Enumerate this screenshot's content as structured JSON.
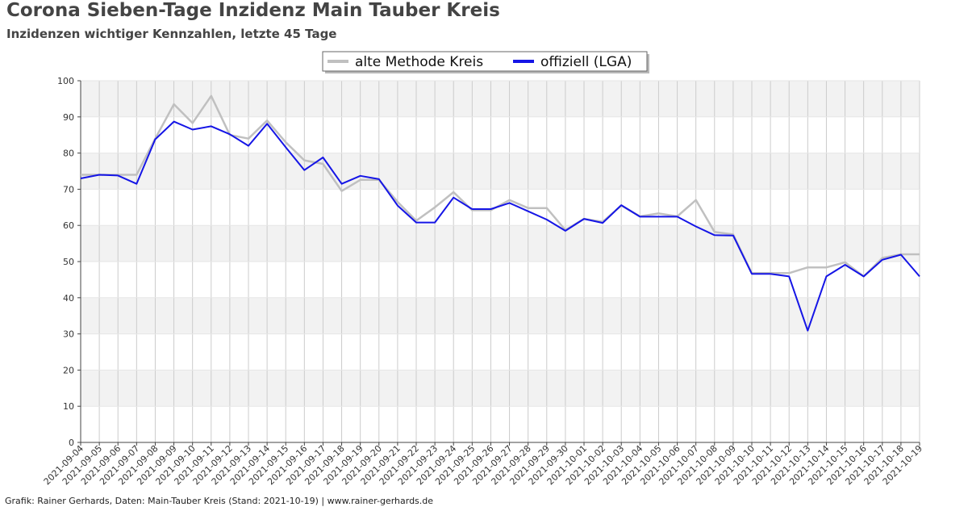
{
  "title": "Corona Sieben-Tage Inzidenz Main Tauber Kreis",
  "subtitle": "Inzidenzen wichtiger Kennzahlen, letzte 45 Tage",
  "footer": "Grafik: Rainer Gerhards, Daten: Main-Tauber Kreis (Stand: 2021-10-19) | www.rainer-gerhards.de",
  "chart_data": {
    "type": "line",
    "grid": true,
    "legend_position": "top-center",
    "ylim": [
      0,
      100
    ],
    "yticks": [
      0,
      10,
      20,
      30,
      40,
      50,
      60,
      70,
      80,
      90,
      100
    ],
    "categories": [
      "2021-09-04",
      "2021-09-05",
      "2021-09-06",
      "2021-09-07",
      "2021-09-08",
      "2021-09-09",
      "2021-09-10",
      "2021-09-11",
      "2021-09-12",
      "2021-09-13",
      "2021-09-14",
      "2021-09-15",
      "2021-09-16",
      "2021-09-17",
      "2021-09-18",
      "2021-09-19",
      "2021-09-20",
      "2021-09-21",
      "2021-09-22",
      "2021-09-23",
      "2021-09-24",
      "2021-09-25",
      "2021-09-26",
      "2021-09-27",
      "2021-09-28",
      "2021-09-29",
      "2021-09-30",
      "2021-10-01",
      "2021-10-02",
      "2021-10-03",
      "2021-10-04",
      "2021-10-05",
      "2021-10-06",
      "2021-10-07",
      "2021-10-08",
      "2021-10-09",
      "2021-10-10",
      "2021-10-11",
      "2021-10-12",
      "2021-10-13",
      "2021-10-14",
      "2021-10-15",
      "2021-10-16",
      "2021-10-17",
      "2021-10-18",
      "2021-10-19"
    ],
    "series": [
      {
        "name": "alte Methode Kreis",
        "color": "#c0c0c0",
        "values": [
          74.0,
          74.0,
          74.0,
          74.0,
          84.0,
          93.5,
          88.3,
          95.8,
          85.0,
          84.0,
          89.0,
          83.0,
          78.0,
          77.0,
          69.5,
          72.6,
          72.6,
          66.5,
          61.3,
          65.0,
          69.2,
          64.2,
          64.2,
          67.0,
          64.8,
          64.8,
          58.7,
          61.8,
          61.0,
          65.5,
          62.5,
          63.3,
          62.5,
          67.0,
          58.2,
          57.5,
          46.8,
          46.8,
          46.8,
          48.4,
          48.4,
          49.8,
          45.9,
          51.0,
          52.0,
          52.0
        ]
      },
      {
        "name": "offiziell (LGA)",
        "color": "#1515e6",
        "values": [
          73.0,
          74.0,
          73.8,
          71.5,
          83.8,
          88.7,
          86.5,
          87.4,
          85.2,
          82.0,
          88.1,
          81.6,
          75.3,
          78.8,
          71.5,
          73.7,
          72.8,
          65.5,
          60.8,
          60.8,
          67.7,
          64.5,
          64.5,
          66.2,
          63.9,
          61.6,
          58.5,
          61.8,
          60.7,
          65.6,
          62.4,
          62.4,
          62.4,
          59.7,
          57.3,
          57.2,
          46.6,
          46.6,
          45.9,
          30.9,
          45.9,
          49.1,
          45.9,
          50.5,
          51.9,
          45.9
        ]
      }
    ]
  }
}
